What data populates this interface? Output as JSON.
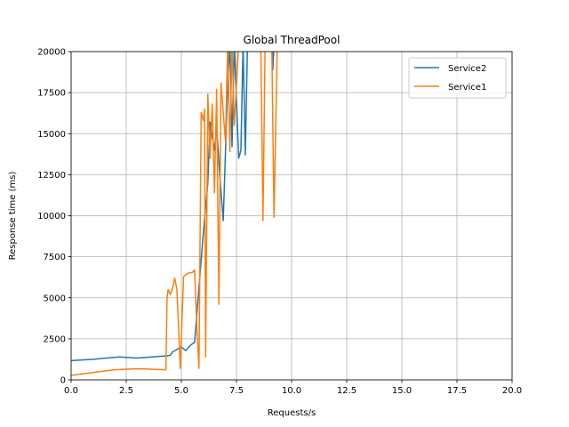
{
  "chart_data": {
    "type": "line",
    "title": "Global ThreadPool",
    "xlabel": "Requests/s",
    "ylabel": "Response time (ms)",
    "xlim": [
      0,
      20
    ],
    "ylim": [
      0,
      20000
    ],
    "xticks": [
      0,
      2.5,
      5,
      7.5,
      10,
      12.5,
      15,
      17.5,
      20
    ],
    "xtick_labels": [
      "0.0",
      "2.5",
      "5.0",
      "7.5",
      "10.0",
      "12.5",
      "15.0",
      "17.5",
      "20.0"
    ],
    "yticks": [
      0,
      2500,
      5000,
      7500,
      10000,
      12500,
      15000,
      17500,
      20000
    ],
    "ytick_labels": [
      "0",
      "2500",
      "5000",
      "7500",
      "10000",
      "12500",
      "15000",
      "17500",
      "20000"
    ],
    "grid": true,
    "legend_position": "top-right",
    "series": [
      {
        "name": "Service2",
        "color": "#1f77b4",
        "points": [
          [
            0,
            1170
          ],
          [
            1,
            1250
          ],
          [
            2.2,
            1400
          ],
          [
            3,
            1330
          ],
          [
            4.4,
            1470
          ],
          [
            4.5,
            1500
          ],
          [
            4.6,
            1700
          ],
          [
            5.0,
            2000
          ],
          [
            5.2,
            1780
          ],
          [
            5.4,
            2100
          ],
          [
            5.6,
            2300
          ],
          [
            6.0,
            9000
          ],
          [
            6.2,
            12000
          ],
          [
            6.3,
            15700
          ],
          [
            6.5,
            14000
          ],
          [
            6.6,
            15400
          ],
          [
            6.75,
            12300
          ],
          [
            6.9,
            9700
          ],
          [
            7.1,
            18000
          ],
          [
            7.2,
            20500
          ],
          [
            7.3,
            14200
          ],
          [
            7.4,
            20500
          ],
          [
            7.6,
            13500
          ],
          [
            7.7,
            14000
          ],
          [
            7.8,
            20500
          ],
          [
            7.9,
            13700
          ],
          [
            8.0,
            20500
          ],
          [
            9.1,
            20500
          ],
          [
            9.15,
            18900
          ],
          [
            9.2,
            20500
          ]
        ]
      },
      {
        "name": "Service1",
        "color": "#ff7f0e",
        "points": [
          [
            0,
            270
          ],
          [
            1,
            450
          ],
          [
            2,
            620
          ],
          [
            3,
            680
          ],
          [
            4.3,
            620
          ],
          [
            4.35,
            5000
          ],
          [
            4.4,
            5500
          ],
          [
            4.5,
            5200
          ],
          [
            4.6,
            5600
          ],
          [
            4.7,
            6200
          ],
          [
            4.8,
            5500
          ],
          [
            4.95,
            700
          ],
          [
            5.1,
            6300
          ],
          [
            5.3,
            6500
          ],
          [
            5.5,
            6550
          ],
          [
            5.6,
            6700
          ],
          [
            5.7,
            3200
          ],
          [
            5.8,
            700
          ],
          [
            5.9,
            16300
          ],
          [
            6.0,
            15800
          ],
          [
            6.05,
            16500
          ],
          [
            6.1,
            1400
          ],
          [
            6.2,
            17400
          ],
          [
            6.3,
            13500
          ],
          [
            6.4,
            16800
          ],
          [
            6.5,
            11400
          ],
          [
            6.6,
            17700
          ],
          [
            6.7,
            4600
          ],
          [
            6.8,
            18100
          ],
          [
            7.0,
            14500
          ],
          [
            7.1,
            20500
          ],
          [
            7.2,
            13900
          ],
          [
            7.3,
            20500
          ],
          [
            7.4,
            15500
          ],
          [
            7.6,
            20500
          ],
          [
            8.6,
            20500
          ],
          [
            8.7,
            9700
          ],
          [
            8.8,
            20500
          ],
          [
            9.1,
            20500
          ],
          [
            9.2,
            9900
          ],
          [
            9.35,
            20500
          ]
        ]
      }
    ]
  }
}
